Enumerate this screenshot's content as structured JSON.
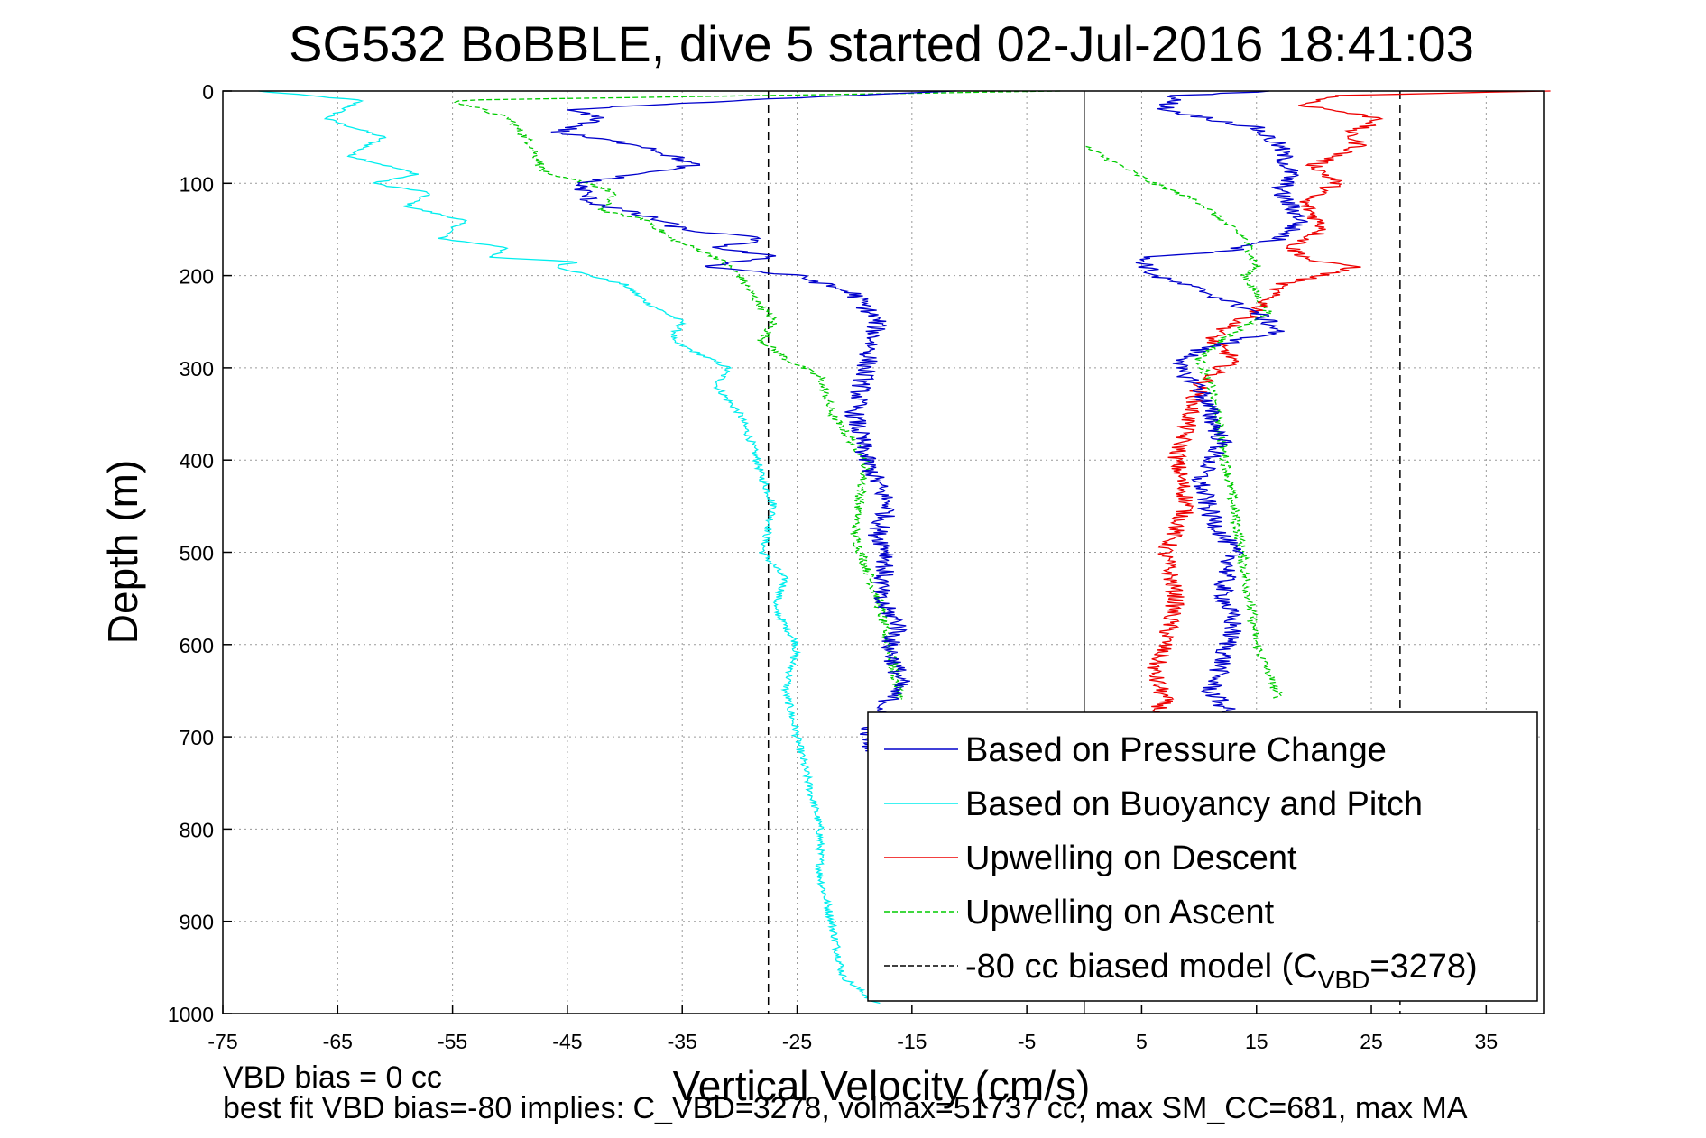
{
  "chart_data": {
    "type": "line",
    "title": "SG532 BoBBLE, dive 5 started 02-Jul-2016 18:41:03",
    "xlabel": "Vertical Velocity (cm/s)",
    "ylabel": "Depth (m)",
    "xlim": [
      -75,
      40
    ],
    "ylim": [
      0,
      1000
    ],
    "y_reversed": true,
    "grid": true,
    "x_ticks": [
      -75,
      -65,
      -55,
      -45,
      -35,
      -25,
      -15,
      -5,
      5,
      15,
      25,
      35
    ],
    "y_ticks": [
      0,
      100,
      200,
      300,
      400,
      500,
      600,
      700,
      800,
      900,
      1000
    ],
    "legend_position": "lower-right",
    "reference_lines": [
      {
        "x": 0,
        "style": "solid",
        "color": "#000000"
      },
      {
        "x": -27.5,
        "style": "dashed",
        "color": "#000000"
      },
      {
        "x": 27.5,
        "style": "dashed",
        "color": "#000000"
      }
    ],
    "series": [
      {
        "name": "Based on Pressure Change",
        "color": "#0000cc",
        "style": "solid",
        "noise": 0.9,
        "segments": [
          {
            "x": [
              -12,
              -30,
              -45,
              -42,
              -46,
              -38,
              -34,
              -44,
              -43,
              -37,
              -35,
              -28,
              -32,
              -27,
              -33,
              -25,
              -20,
              -18,
              -19,
              -20,
              -19,
              -17,
              -18,
              -17,
              -18,
              -16,
              -17,
              -16,
              -18,
              -19,
              -18
            ],
            "y": [
              0,
              10,
              20,
              30,
              45,
              60,
              80,
              100,
              120,
              140,
              150,
              160,
              170,
              180,
              190,
              200,
              220,
              250,
              300,
              350,
              400,
              450,
              480,
              500,
              550,
              580,
              600,
              640,
              680,
              700,
              720
            ]
          },
          {
            "x": [
              17,
              8,
              7,
              15,
              17,
              18,
              17,
              19,
              17,
              12,
              5,
              6,
              10,
              15,
              17,
              10,
              8,
              10,
              11,
              12,
              10,
              11,
              13,
              12,
              13,
              12,
              11,
              13
            ],
            "y": [
              0,
              5,
              20,
              40,
              60,
              90,
              110,
              140,
              160,
              175,
              180,
              200,
              215,
              240,
              260,
              280,
              300,
              320,
              350,
              380,
              420,
              460,
              500,
              540,
              580,
              620,
              650,
              680
            ]
          }
        ]
      },
      {
        "name": "Based on Buoyancy and Pitch",
        "color": "#00eeee",
        "style": "solid",
        "noise": 0.35,
        "segments": [
          {
            "x": [
              -72,
              -63,
              -66,
              -61,
              -64,
              -58,
              -62,
              -57,
              -59,
              -54,
              -56,
              -50,
              -52,
              -44,
              -46,
              -40,
              -38,
              -35,
              -36,
              -31,
              -32,
              -30,
              -29,
              -28,
              -27,
              -28,
              -26,
              -27,
              -25,
              -26,
              -25,
              -24,
              -23,
              -23,
              -22,
              -21,
              -18
            ],
            "y": [
              0,
              10,
              30,
              50,
              70,
              90,
              100,
              110,
              125,
              140,
              160,
              170,
              180,
              185,
              190,
              210,
              230,
              250,
              270,
              300,
              320,
              350,
              380,
              420,
              450,
              500,
              530,
              560,
              600,
              650,
              700,
              750,
              800,
              850,
              900,
              960,
              990
            ]
          }
        ]
      },
      {
        "name": "Upwelling on Descent",
        "color": "#ee0000",
        "style": "solid",
        "noise": 0.8,
        "segments": [
          {
            "x": [
              40,
              22,
              19,
              26,
              23,
              24,
              20,
              22,
              19,
              21,
              18,
              20,
              24,
              17,
              15,
              12,
              11,
              13,
              10,
              9,
              8,
              9,
              7,
              8,
              7,
              6,
              7,
              6
            ],
            "y": [
              0,
              5,
              15,
              30,
              45,
              60,
              80,
              100,
              120,
              150,
              170,
              185,
              190,
              210,
              240,
              260,
              270,
              290,
              320,
              360,
              400,
              450,
              500,
              550,
              600,
              630,
              660,
              680
            ]
          }
        ]
      },
      {
        "name": "Upwelling on Ascent",
        "color": "#00cc00",
        "style": "dashed",
        "noise": 0.45,
        "segments": [
          {
            "x": [
              -2,
              -55,
              -50,
              -48,
              -47,
              -43,
              -41,
              -42,
              -38,
              -36,
              -32,
              -30,
              -29,
              -27,
              -28,
              -26,
              -23,
              -22,
              -19,
              -20,
              -18,
              -17,
              -16
            ],
            "y": [
              0,
              10,
              30,
              60,
              90,
              100,
              110,
              130,
              140,
              160,
              180,
              200,
              220,
              250,
              270,
              290,
              310,
              350,
              400,
              480,
              550,
              600,
              660
            ]
          },
          {
            "x": [
              0,
              3,
              6,
              10,
              12,
              14,
              15,
              14,
              16,
              12,
              10,
              11,
              12,
              13,
              14,
              15,
              17
            ],
            "y": [
              60,
              80,
              100,
              120,
              140,
              160,
              190,
              200,
              240,
              270,
              290,
              320,
              380,
              450,
              520,
              600,
              660
            ]
          }
        ]
      },
      {
        "name": "-80 cc biased model (C",
        "name_sub": "VBD",
        "name_suffix": "=3278)",
        "color": "#000000",
        "style": "dashed",
        "noise": 0,
        "segments": []
      }
    ]
  },
  "footnotes": {
    "line1": "VBD bias = 0 cc",
    "line2": "best fit VBD bias=-80 implies: C_VBD=3278, volmax=51737 cc, max SM_CC=681, max MA"
  }
}
